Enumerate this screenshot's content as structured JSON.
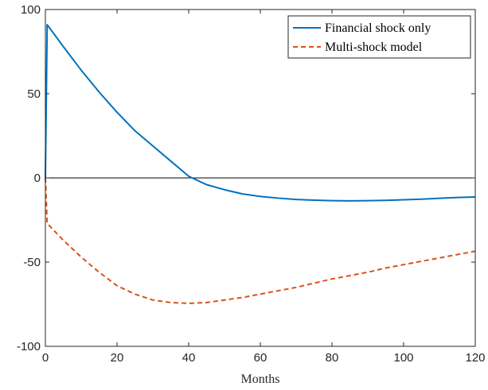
{
  "chart_data": {
    "type": "line",
    "title": "",
    "xlabel": "Months",
    "ylabel": "",
    "xlim": [
      0,
      120
    ],
    "ylim": [
      -100,
      100
    ],
    "xticks": [
      0,
      20,
      40,
      60,
      80,
      100,
      120
    ],
    "yticks": [
      -100,
      -50,
      0,
      50,
      100
    ],
    "grid": false,
    "zero_line": true,
    "legend_position": "top-right",
    "series": [
      {
        "name": "Financial shock only",
        "color": "#0072BD",
        "style": "solid",
        "x": [
          0,
          0.5,
          5,
          10,
          15,
          20,
          25,
          30,
          35,
          40,
          45,
          50,
          55,
          60,
          65,
          70,
          75,
          80,
          85,
          90,
          95,
          100,
          105,
          110,
          115,
          120
        ],
        "y": [
          0,
          91,
          78,
          64,
          51,
          39,
          28,
          19,
          10,
          1,
          -4,
          -7,
          -9.5,
          -11,
          -12,
          -12.8,
          -13.2,
          -13.5,
          -13.6,
          -13.5,
          -13.3,
          -13,
          -12.6,
          -12.1,
          -11.6,
          -11.3
        ]
      },
      {
        "name": "Multi-shock model",
        "color": "#D95319",
        "style": "dashed",
        "x": [
          0,
          0.5,
          5,
          10,
          15,
          20,
          25,
          30,
          35,
          40,
          45,
          50,
          55,
          60,
          65,
          70,
          75,
          80,
          85,
          90,
          95,
          100,
          105,
          110,
          115,
          120
        ],
        "y": [
          0,
          -27,
          -37,
          -47,
          -56,
          -64,
          -69,
          -72.5,
          -74,
          -74.5,
          -74,
          -72.5,
          -71,
          -69,
          -67,
          -65,
          -62.5,
          -60,
          -58,
          -56,
          -53.5,
          -51.5,
          -49.5,
          -47.5,
          -45.5,
          -43.5
        ]
      }
    ]
  }
}
